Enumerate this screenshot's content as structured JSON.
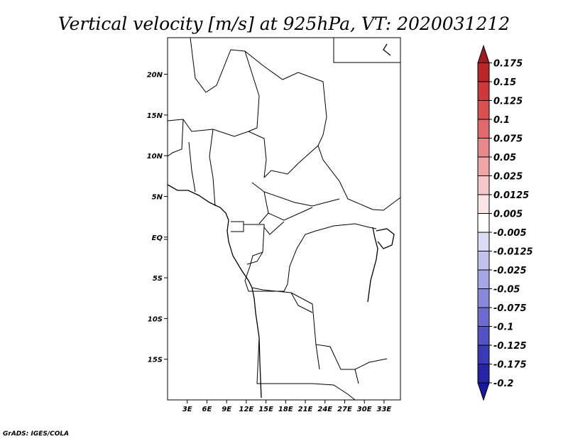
{
  "chart_data": {
    "type": "heatmap",
    "title": "Vertical velocity [m/s] at 925hPa, VT: 2020031212",
    "variable": "Vertical velocity",
    "units": "m/s",
    "level": "925hPa",
    "valid_time": "2020031212",
    "x_axis": {
      "range_deg": [
        0,
        35.5
      ],
      "ticks": [
        {
          "value": 3,
          "label": "3E"
        },
        {
          "value": 6,
          "label": "6E"
        },
        {
          "value": 9,
          "label": "9E"
        },
        {
          "value": 12,
          "label": "12E"
        },
        {
          "value": 15,
          "label": "15E"
        },
        {
          "value": 18,
          "label": "18E"
        },
        {
          "value": 21,
          "label": "21E"
        },
        {
          "value": 24,
          "label": "24E"
        },
        {
          "value": 27,
          "label": "27E"
        },
        {
          "value": 30,
          "label": "30E"
        },
        {
          "value": 33,
          "label": "33E"
        }
      ]
    },
    "y_axis": {
      "range_deg": [
        -20,
        24.5
      ],
      "ticks": [
        {
          "value": 20,
          "label": "20N"
        },
        {
          "value": 15,
          "label": "15N"
        },
        {
          "value": 10,
          "label": "10N"
        },
        {
          "value": 5,
          "label": "5N"
        },
        {
          "value": 0,
          "label": "EQ"
        },
        {
          "value": -5,
          "label": "5S"
        },
        {
          "value": -10,
          "label": "10S"
        },
        {
          "value": -15,
          "label": "15S"
        }
      ]
    },
    "colorbar": {
      "labels": [
        "0.175",
        "0.15",
        "0.125",
        "0.1",
        "0.075",
        "0.05",
        "0.025",
        "0.0125",
        "0.005",
        "-0.005",
        "-0.0125",
        "-0.025",
        "-0.05",
        "-0.075",
        "-0.1",
        "-0.125",
        "-0.175",
        "-0.2"
      ],
      "colors": [
        "#a01c1c",
        "#ba2626",
        "#cc3838",
        "#d85050",
        "#e06a6a",
        "#e88888",
        "#f0a6a6",
        "#f7c6c6",
        "#fbe4e4",
        "#ffffff",
        "#dcdcf6",
        "#c2c2ee",
        "#a6a6e6",
        "#8888dc",
        "#6c6cd0",
        "#5252c4",
        "#3a3ab6",
        "#2424a4",
        "#1818a0"
      ]
    },
    "credit": "GrADS: IGES/COLA"
  }
}
